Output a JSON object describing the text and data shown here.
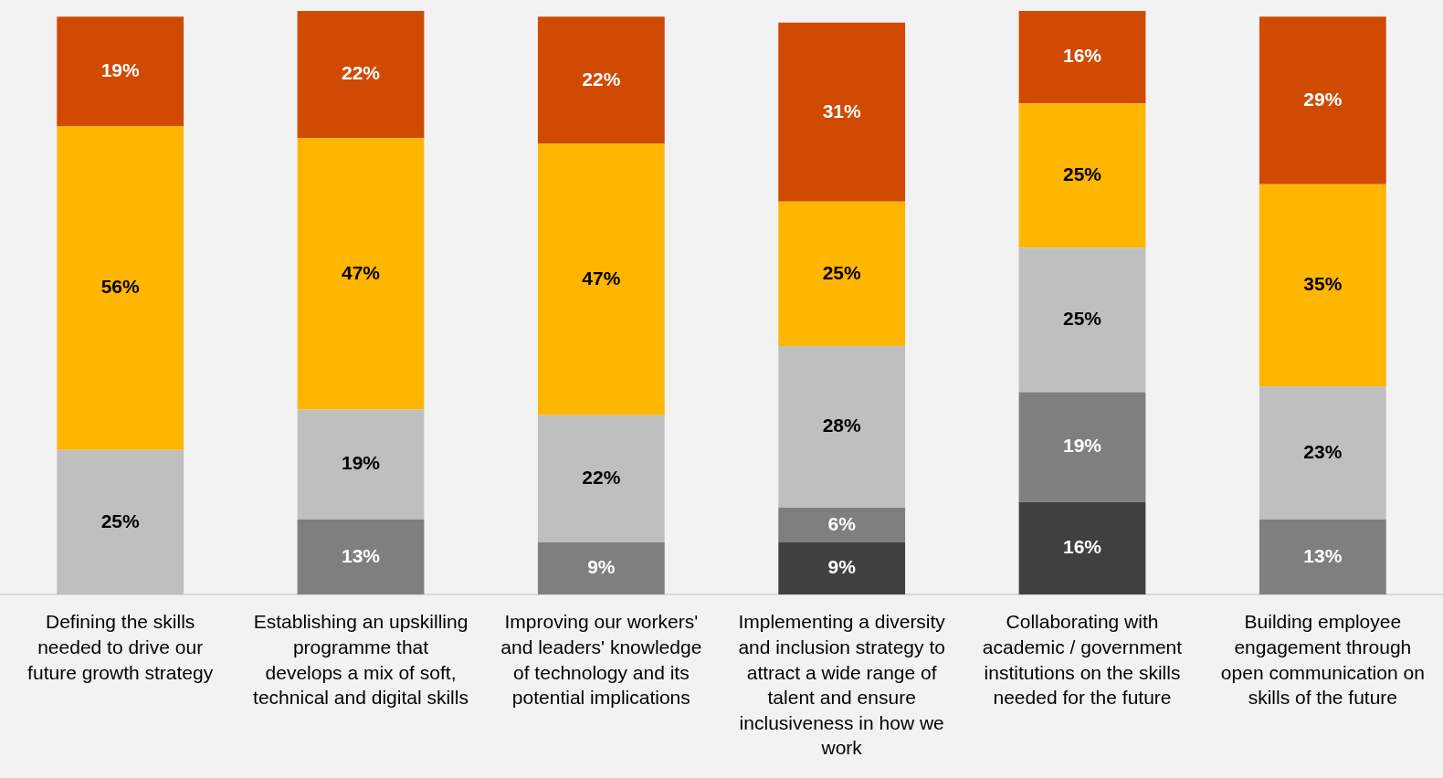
{
  "chart_data": {
    "type": "bar",
    "stacked": true,
    "grid": false,
    "legend": false,
    "tick_labels": "x",
    "categories": [
      "Defining the skills needed to drive our future growth strategy",
      "Establishing an upskilling programme that develops a mix of soft, technical and digital skills",
      "Improving our workers' and leaders' knowledge of technology and its potential implications",
      "Implementing a diversity and inclusion strategy to attract a wide range of talent and ensure inclusiveness in how we work",
      "Collaborating with academic / government institutions on the skills needed for the future",
      "Building employee engagement through open communication on skills of the future"
    ],
    "series": [
      {
        "color": "#404040",
        "values": [
          null,
          null,
          null,
          9,
          16,
          null
        ],
        "value_labels": [
          null,
          null,
          null,
          "9%",
          "16%",
          null
        ]
      },
      {
        "color": "#7f7f7f",
        "values": [
          null,
          13,
          9,
          6,
          19,
          13
        ],
        "value_labels": [
          null,
          "13%",
          "9%",
          "6%",
          "19%",
          "13%"
        ]
      },
      {
        "color": "#bfbfbf",
        "values": [
          25,
          19,
          22,
          28,
          25,
          23
        ],
        "value_labels": [
          "25%",
          "19%",
          "22%",
          "28%",
          "25%",
          "23%"
        ]
      },
      {
        "color": "#ffb600",
        "values": [
          56,
          47,
          47,
          25,
          25,
          35
        ],
        "value_labels": [
          "56%",
          "47%",
          "47%",
          "25%",
          "25%",
          "35%"
        ]
      },
      {
        "color": "#d04a02",
        "values": [
          19,
          22,
          22,
          31,
          16,
          29
        ],
        "value_labels": [
          "19%",
          "22%",
          "22%",
          "31%",
          "16%",
          "29%"
        ]
      }
    ]
  }
}
